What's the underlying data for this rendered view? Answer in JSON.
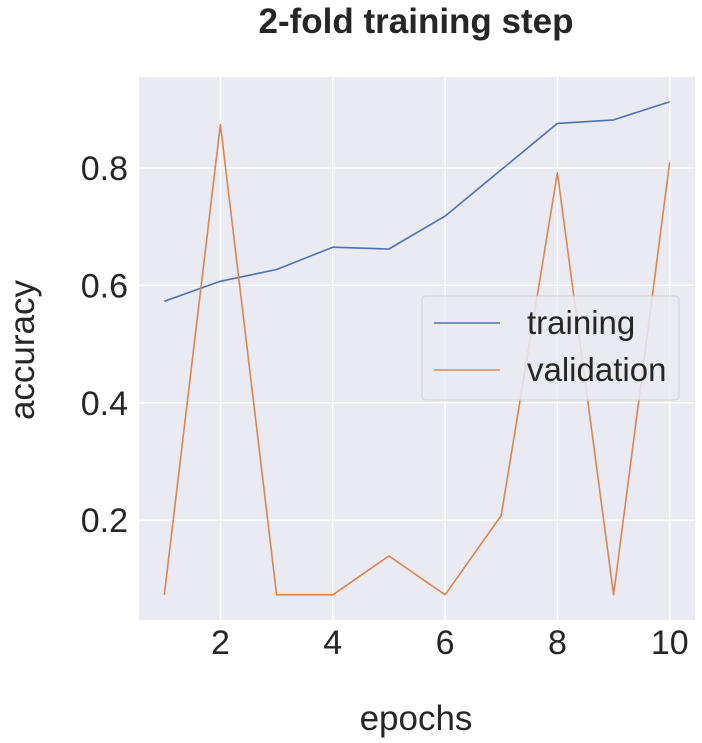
{
  "chart_data": {
    "type": "line",
    "title": "2-fold training step",
    "xlabel": "epochs",
    "ylabel": "accuracy",
    "x": [
      1,
      2,
      3,
      4,
      5,
      6,
      7,
      8,
      9,
      10
    ],
    "xticks": [
      2,
      4,
      6,
      8,
      10
    ],
    "yticks": [
      0.2,
      0.4,
      0.6,
      0.8
    ],
    "xtick_labels": [
      "2",
      "4",
      "6",
      "8",
      "10"
    ],
    "ytick_labels": [
      "0.2",
      "0.4",
      "0.6",
      "0.8"
    ],
    "xlim": [
      0.55,
      10.45
    ],
    "ylim": [
      0.03,
      0.955
    ],
    "grid": true,
    "legend_position": "center-right",
    "series": [
      {
        "name": "training",
        "color": "#4c72b0",
        "values": [
          0.573,
          0.607,
          0.627,
          0.665,
          0.662,
          0.718,
          0.797,
          0.876,
          0.882,
          0.913
        ]
      },
      {
        "name": "validation",
        "color": "#dd8452",
        "values": [
          0.073,
          0.874,
          0.073,
          0.073,
          0.139,
          0.073,
          0.208,
          0.792,
          0.073,
          0.81
        ]
      }
    ]
  }
}
